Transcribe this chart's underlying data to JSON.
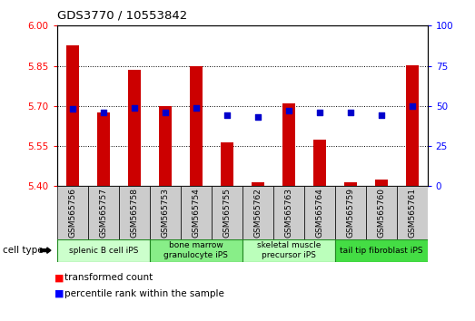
{
  "title": "GDS3770 / 10553842",
  "samples": [
    "GSM565756",
    "GSM565757",
    "GSM565758",
    "GSM565753",
    "GSM565754",
    "GSM565755",
    "GSM565762",
    "GSM565763",
    "GSM565764",
    "GSM565759",
    "GSM565760",
    "GSM565761"
  ],
  "transformed_count": [
    5.925,
    5.675,
    5.835,
    5.7,
    5.847,
    5.565,
    5.415,
    5.71,
    5.575,
    5.415,
    5.425,
    5.853
  ],
  "percentile_rank_values": [
    48,
    46,
    49,
    46,
    49,
    44,
    43,
    47,
    46,
    46,
    44,
    50
  ],
  "cell_types": [
    {
      "label": "splenic B cell iPS",
      "start": 0,
      "end": 3,
      "color": "#ccffcc"
    },
    {
      "label": "bone marrow\ngranulocyte iPS",
      "start": 3,
      "end": 6,
      "color": "#88ee88"
    },
    {
      "label": "skeletal muscle\nprecursor iPS",
      "start": 6,
      "end": 9,
      "color": "#bbffbb"
    },
    {
      "label": "tail tip fibroblast iPS",
      "start": 9,
      "end": 12,
      "color": "#44dd44"
    }
  ],
  "ylim_left": [
    5.4,
    6.0
  ],
  "ylim_right": [
    0,
    100
  ],
  "yticks_left": [
    5.4,
    5.55,
    5.7,
    5.85,
    6.0
  ],
  "yticks_right": [
    0,
    25,
    50,
    75,
    100
  ],
  "bar_color": "#cc0000",
  "dot_color": "#0000cc",
  "bar_width": 0.4,
  "background_color": "#ffffff",
  "xticklabel_bg": "#cccccc",
  "cell_type_label": "cell type"
}
